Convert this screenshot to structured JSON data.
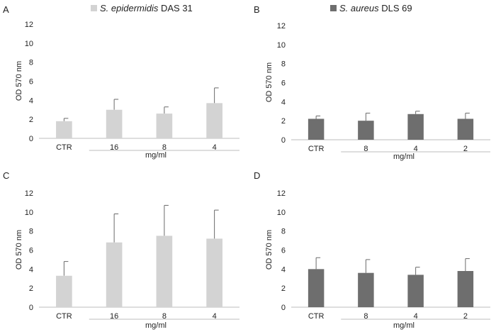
{
  "legends": [
    {
      "species": "S. epidermidis",
      "strain": " DAS 31",
      "color": "#d3d3d3"
    },
    {
      "species": "S. aureus",
      "strain": " DLS 69",
      "color": "#6e6e6e"
    }
  ],
  "chart_data": [
    {
      "panel": "A",
      "type": "bar",
      "color": "#d3d3d3",
      "categories": [
        "CTR",
        "16",
        "8",
        "4"
      ],
      "values": [
        1.8,
        3.0,
        2.6,
        3.7
      ],
      "errors": [
        0.3,
        1.1,
        0.7,
        1.6
      ],
      "ylim": [
        0,
        12
      ],
      "yticks": [
        "0",
        "2",
        "4",
        "6",
        "8",
        "10",
        "12"
      ],
      "ylabel": "OD 570 nm",
      "xlabel": "mg/ml"
    },
    {
      "panel": "B",
      "type": "bar",
      "color": "#6e6e6e",
      "categories": [
        "CTR",
        "8",
        "4",
        "2"
      ],
      "values": [
        2.2,
        2.0,
        2.7,
        2.2
      ],
      "errors": [
        0.3,
        0.8,
        0.3,
        0.6
      ],
      "ylim": [
        0,
        12
      ],
      "yticks": [
        "0",
        "2",
        "4",
        "6",
        "8",
        "10",
        "12"
      ],
      "ylabel": "OD 570 nm",
      "xlabel": "mg/ml"
    },
    {
      "panel": "C",
      "type": "bar",
      "color": "#d3d3d3",
      "categories": [
        "CTR",
        "16",
        "8",
        "4"
      ],
      "values": [
        3.3,
        6.8,
        7.5,
        7.2
      ],
      "errors": [
        1.5,
        3.0,
        3.2,
        3.0
      ],
      "ylim": [
        0,
        12
      ],
      "yticks": [
        "0",
        "2",
        "4",
        "6",
        "8",
        "10",
        "12"
      ],
      "ylabel": "OD 570 nm",
      "xlabel": "mg/ml"
    },
    {
      "panel": "D",
      "type": "bar",
      "color": "#6e6e6e",
      "categories": [
        "CTR",
        "8",
        "4",
        "2"
      ],
      "values": [
        4.0,
        3.6,
        3.4,
        3.8
      ],
      "errors": [
        1.2,
        1.4,
        0.8,
        1.3
      ],
      "ylim": [
        0,
        12
      ],
      "yticks": [
        "0",
        "2",
        "4",
        "6",
        "8",
        "10",
        "12"
      ],
      "ylabel": "OD 570 nm",
      "xlabel": "mg/ml"
    }
  ]
}
